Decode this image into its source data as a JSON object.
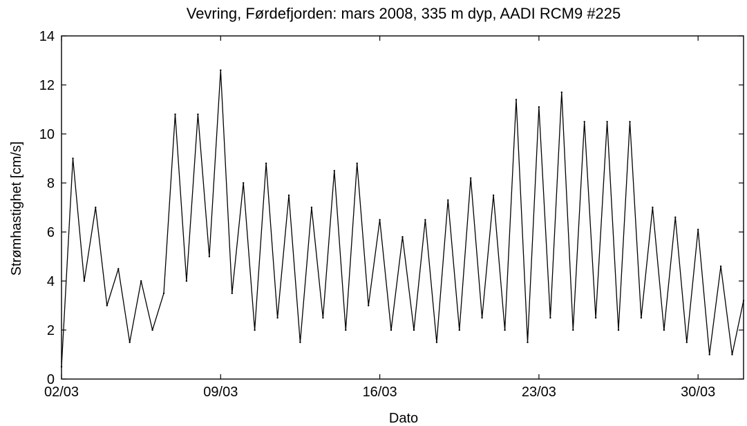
{
  "chart_data": {
    "type": "line",
    "title": "Vevring, Førdefjorden: mars 2008, 335 m dyp, AADI RCM9 #225",
    "xlabel": "Dato",
    "ylabel": "Strømhastighet [cm/s]",
    "ylim": [
      0,
      14
    ],
    "xlim": [
      "2008-03-02",
      "2008-04-01"
    ],
    "yticks": [
      0,
      2,
      4,
      6,
      8,
      10,
      12,
      14
    ],
    "yticklabels": [
      "0",
      "2",
      "4",
      "6",
      "8",
      "10",
      "12",
      "14"
    ],
    "xticks": [
      "2008-03-02",
      "2008-03-09",
      "2008-03-16",
      "2008-03-23",
      "2008-03-30"
    ],
    "xticklabels": [
      "02/03",
      "09/03",
      "16/03",
      "23/03",
      "30/03"
    ],
    "grid": false,
    "line_color": "#000000",
    "series": [
      {
        "x": [
          "2008-03-02 00:00",
          "2008-03-02 12:00",
          "2008-03-03 00:00",
          "2008-03-03 12:00",
          "2008-03-04 00:00",
          "2008-03-04 12:00",
          "2008-03-05 00:00",
          "2008-03-05 12:00",
          "2008-03-06 00:00",
          "2008-03-06 12:00",
          "2008-03-07 00:00",
          "2008-03-07 12:00",
          "2008-03-08 00:00",
          "2008-03-08 12:00",
          "2008-03-09 00:00",
          "2008-03-09 12:00",
          "2008-03-10 00:00",
          "2008-03-10 12:00",
          "2008-03-11 00:00",
          "2008-03-11 12:00",
          "2008-03-12 00:00",
          "2008-03-12 12:00",
          "2008-03-13 00:00",
          "2008-03-13 12:00",
          "2008-03-14 00:00",
          "2008-03-14 12:00",
          "2008-03-15 00:00",
          "2008-03-15 12:00",
          "2008-03-16 00:00",
          "2008-03-16 12:00",
          "2008-03-17 00:00",
          "2008-03-17 12:00",
          "2008-03-18 00:00",
          "2008-03-18 12:00",
          "2008-03-19 00:00",
          "2008-03-19 12:00",
          "2008-03-20 00:00",
          "2008-03-20 12:00",
          "2008-03-21 00:00",
          "2008-03-21 12:00",
          "2008-03-22 00:00",
          "2008-03-22 12:00",
          "2008-03-23 00:00",
          "2008-03-23 12:00",
          "2008-03-24 00:00",
          "2008-03-24 12:00",
          "2008-03-25 00:00",
          "2008-03-25 12:00",
          "2008-03-26 00:00",
          "2008-03-26 12:00",
          "2008-03-27 00:00",
          "2008-03-27 12:00",
          "2008-03-28 00:00",
          "2008-03-28 12:00",
          "2008-03-29 00:00",
          "2008-03-29 12:00",
          "2008-03-30 00:00",
          "2008-03-30 12:00",
          "2008-03-31 00:00",
          "2008-03-31 12:00",
          "2008-04-01 00:00"
        ],
        "y": [
          0.5,
          9.0,
          4.0,
          7.0,
          3.0,
          4.5,
          1.5,
          4.0,
          2.0,
          3.5,
          10.8,
          4.0,
          10.8,
          5.0,
          12.6,
          3.5,
          8.0,
          2.0,
          8.8,
          2.5,
          7.5,
          1.5,
          7.0,
          2.5,
          8.5,
          2.0,
          8.8,
          3.0,
          6.5,
          2.0,
          5.8,
          2.0,
          6.5,
          1.5,
          7.3,
          2.0,
          8.2,
          2.5,
          7.5,
          2.0,
          11.4,
          1.5,
          11.1,
          2.5,
          11.7,
          2.0,
          10.5,
          2.5,
          10.5,
          2.0,
          10.5,
          2.5,
          7.0,
          2.0,
          6.6,
          1.5,
          6.1,
          1.0,
          4.6,
          1.0,
          3.2
        ]
      }
    ]
  }
}
